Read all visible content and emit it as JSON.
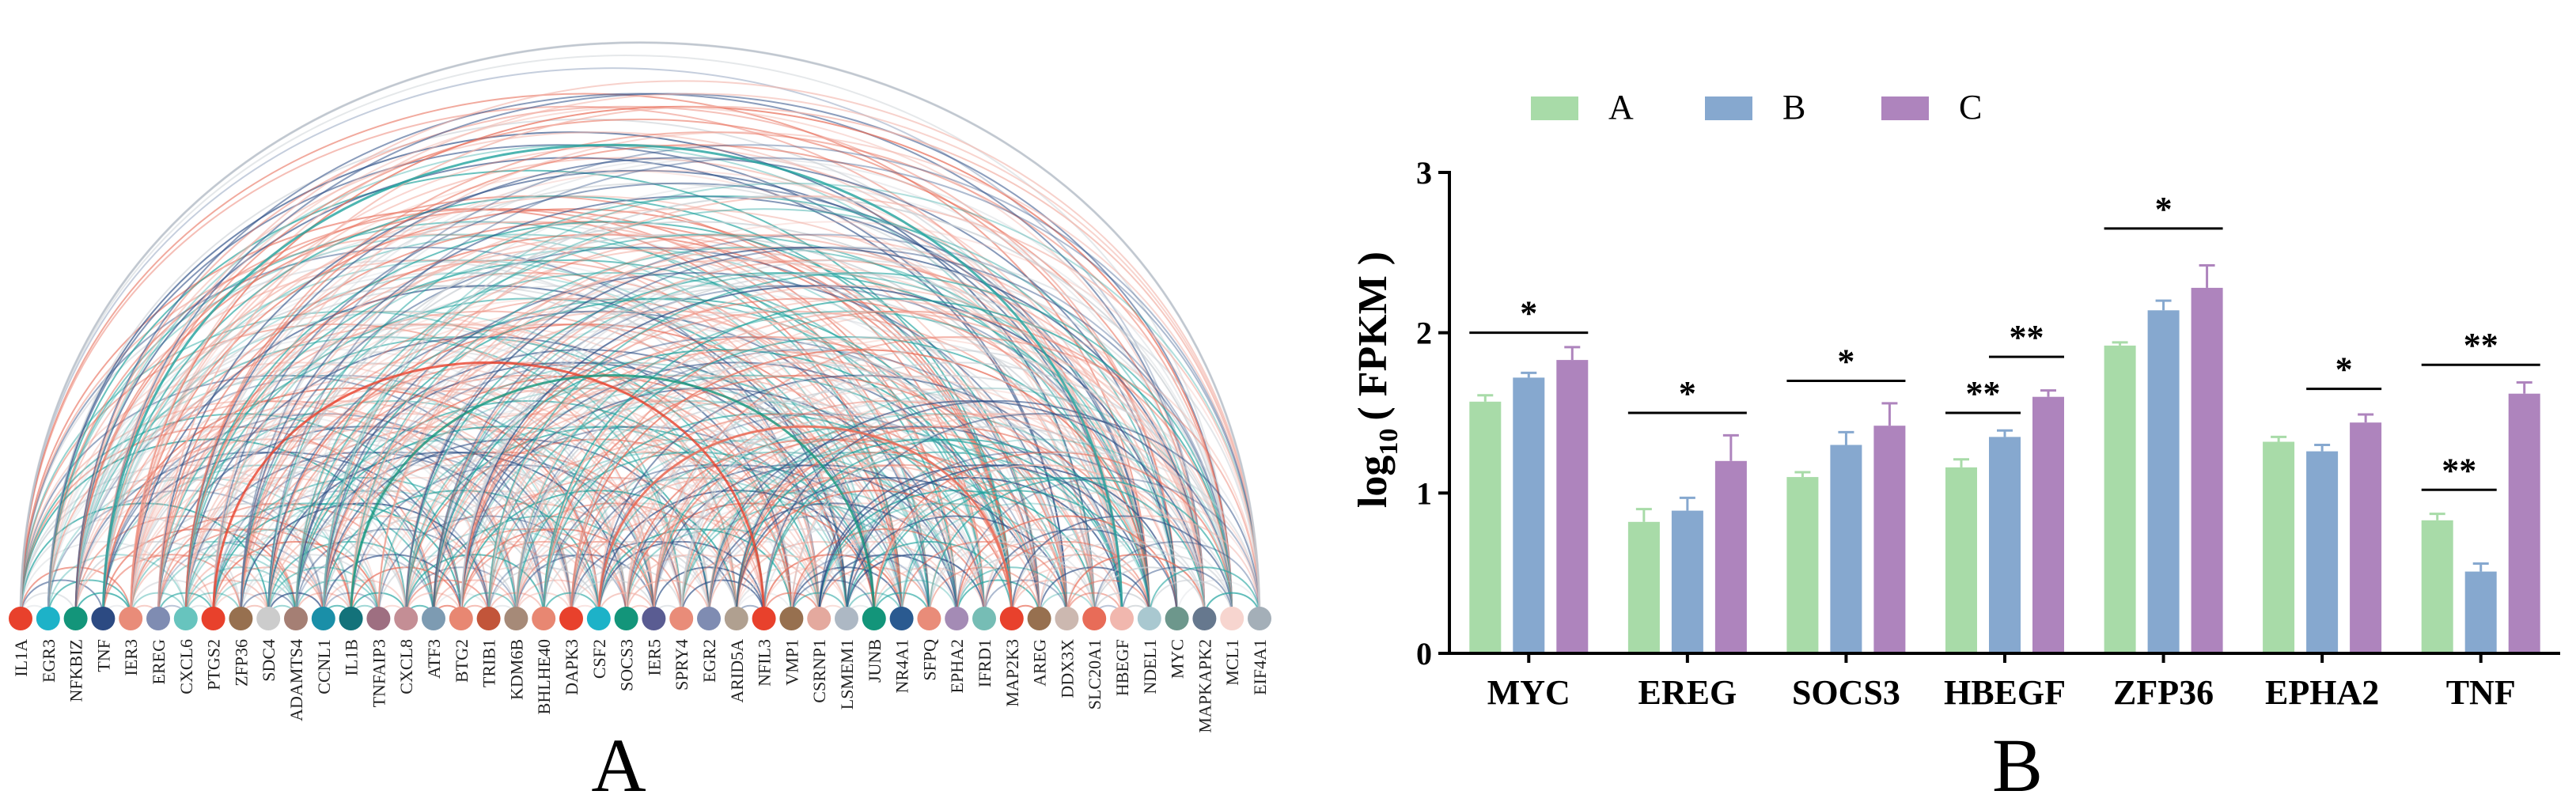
{
  "panels": {
    "a_label": "A",
    "b_label": "B"
  },
  "arc_chart": {
    "type": "arc_network",
    "genes": [
      "IL1A",
      "EGR3",
      "NFKBIZ",
      "TNF",
      "IER3",
      "EREG",
      "CXCL6",
      "PTGS2",
      "ZFP36",
      "SDC4",
      "ADAMTS4",
      "CCNL1",
      "IL1B",
      "TNFAIP3",
      "CXCL8",
      "ATF3",
      "BTG2",
      "TRIB1",
      "KDM6B",
      "BHLHE40",
      "DAPK3",
      "CSF2",
      "SOCS3",
      "IER5",
      "SPRY4",
      "EGR2",
      "ARID5A",
      "NFIL3",
      "VMP1",
      "CSRNP1",
      "LSMEM1",
      "JUNB",
      "NR4A1",
      "SFPQ",
      "EPHA2",
      "IFRD1",
      "MAP2K3",
      "AREG",
      "DDX3X",
      "SLC20A1",
      "HBEGF",
      "NDEL1",
      "MYC",
      "MAPKAPK2",
      "MCL1",
      "EIF4A1"
    ],
    "node_colors": [
      "#E8412C",
      "#1DB2C8",
      "#13957A",
      "#2C4A82",
      "#E98C79",
      "#7F8CB2",
      "#67C4BE",
      "#E8412C",
      "#97704F",
      "#CCCCCC",
      "#A57F74",
      "#1A8FA8",
      "#13727A",
      "#9E6F81",
      "#C48E95",
      "#7D9BB2",
      "#E88772",
      "#C2553A",
      "#A68A78",
      "#E88772",
      "#E8412C",
      "#1DB2C8",
      "#13957A",
      "#5A5C92",
      "#E98C79",
      "#7F8CB2",
      "#B0A090",
      "#E8412C",
      "#97704F",
      "#E4A99E",
      "#ADB8C4",
      "#13957A",
      "#2A5A90",
      "#E98C79",
      "#A48BB5",
      "#76BDB5",
      "#E8412C",
      "#97704F",
      "#CCB8B0",
      "#E86C58",
      "#F1B7AE",
      "#A9C8D0",
      "#6D978C",
      "#66788E",
      "#F7D5CF",
      "#A4AFB8"
    ],
    "arc_palette": [
      "#20A39E",
      "#E86C58",
      "#C9CED3",
      "#F2B3A8",
      "#2E4F86"
    ]
  },
  "chart_data": {
    "type": "bar",
    "categories": [
      "MYC",
      "EREG",
      "SOCS3",
      "HBEGF",
      "ZFP36",
      "EPHA2",
      "TNF"
    ],
    "series": [
      {
        "name": "A",
        "color": "#A8DBA8",
        "values": [
          1.57,
          0.82,
          1.1,
          1.16,
          1.92,
          1.32,
          0.83
        ],
        "errors": [
          0.04,
          0.08,
          0.03,
          0.05,
          0.02,
          0.03,
          0.04
        ]
      },
      {
        "name": "B",
        "color": "#86A8CF",
        "values": [
          1.72,
          0.89,
          1.3,
          1.35,
          2.14,
          1.26,
          0.51
        ],
        "errors": [
          0.03,
          0.08,
          0.08,
          0.04,
          0.06,
          0.04,
          0.05
        ]
      },
      {
        "name": "C",
        "color": "#AE84BD",
        "values": [
          1.83,
          1.2,
          1.42,
          1.6,
          2.28,
          1.44,
          1.62
        ],
        "errors": [
          0.08,
          0.16,
          0.14,
          0.04,
          0.14,
          0.05,
          0.07
        ]
      }
    ],
    "ylabel": "log10 ( FPKM )",
    "ylabel_base": "log",
    "ylabel_sub": "10",
    "ylabel_rest": "( FPKM )",
    "ylim": [
      0,
      3
    ],
    "yticks": [
      0,
      1,
      2,
      3
    ],
    "legend": {
      "position": "top",
      "labels": [
        "A",
        "B",
        "C"
      ]
    },
    "significance": [
      {
        "cat": 0,
        "from": "A",
        "to": "C",
        "y": 2.0,
        "label": "*"
      },
      {
        "cat": 1,
        "from": "A",
        "to": "C",
        "y": 1.5,
        "label": "*"
      },
      {
        "cat": 2,
        "from": "A",
        "to": "C",
        "y": 1.7,
        "label": "*"
      },
      {
        "cat": 3,
        "from": "A",
        "to": "B",
        "y": 1.5,
        "label": "**"
      },
      {
        "cat": 3,
        "from": "B",
        "to": "C",
        "y": 1.85,
        "label": "**"
      },
      {
        "cat": 4,
        "from": "A",
        "to": "C",
        "y": 2.65,
        "label": "*"
      },
      {
        "cat": 5,
        "from": "B",
        "to": "C",
        "y": 1.65,
        "label": "*"
      },
      {
        "cat": 6,
        "from": "A",
        "to": "B",
        "y": 1.02,
        "label": "**"
      },
      {
        "cat": 6,
        "from": "A",
        "to": "C",
        "y": 1.8,
        "label": "**"
      }
    ]
  }
}
